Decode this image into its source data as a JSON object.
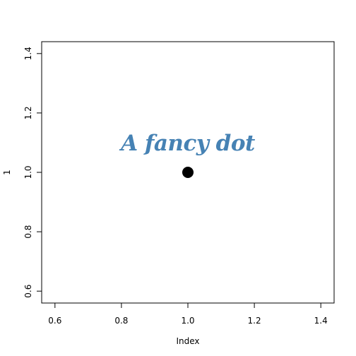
{
  "chart_data": {
    "type": "scatter",
    "title": "",
    "xlabel": "Index",
    "ylabel": "1",
    "xlim": [
      0.56,
      1.44
    ],
    "ylim": [
      0.56,
      1.44
    ],
    "x_ticks": [
      0.6,
      0.8,
      1.0,
      1.2,
      1.4
    ],
    "y_ticks": [
      0.6,
      0.8,
      1.0,
      1.2,
      1.4
    ],
    "x_tick_labels": [
      "0.6",
      "0.8",
      "1.0",
      "1.2",
      "1.4"
    ],
    "y_tick_labels": [
      "0.6",
      "0.8",
      "1.0",
      "1.2",
      "1.4"
    ],
    "grid": false,
    "points": [
      {
        "x": 1.0,
        "y": 1.0
      }
    ],
    "annotations": [
      {
        "text": "A fancy dot",
        "x": 1.0,
        "y": 1.1,
        "color": "#4682B4"
      }
    ],
    "point_color": "#000000"
  }
}
